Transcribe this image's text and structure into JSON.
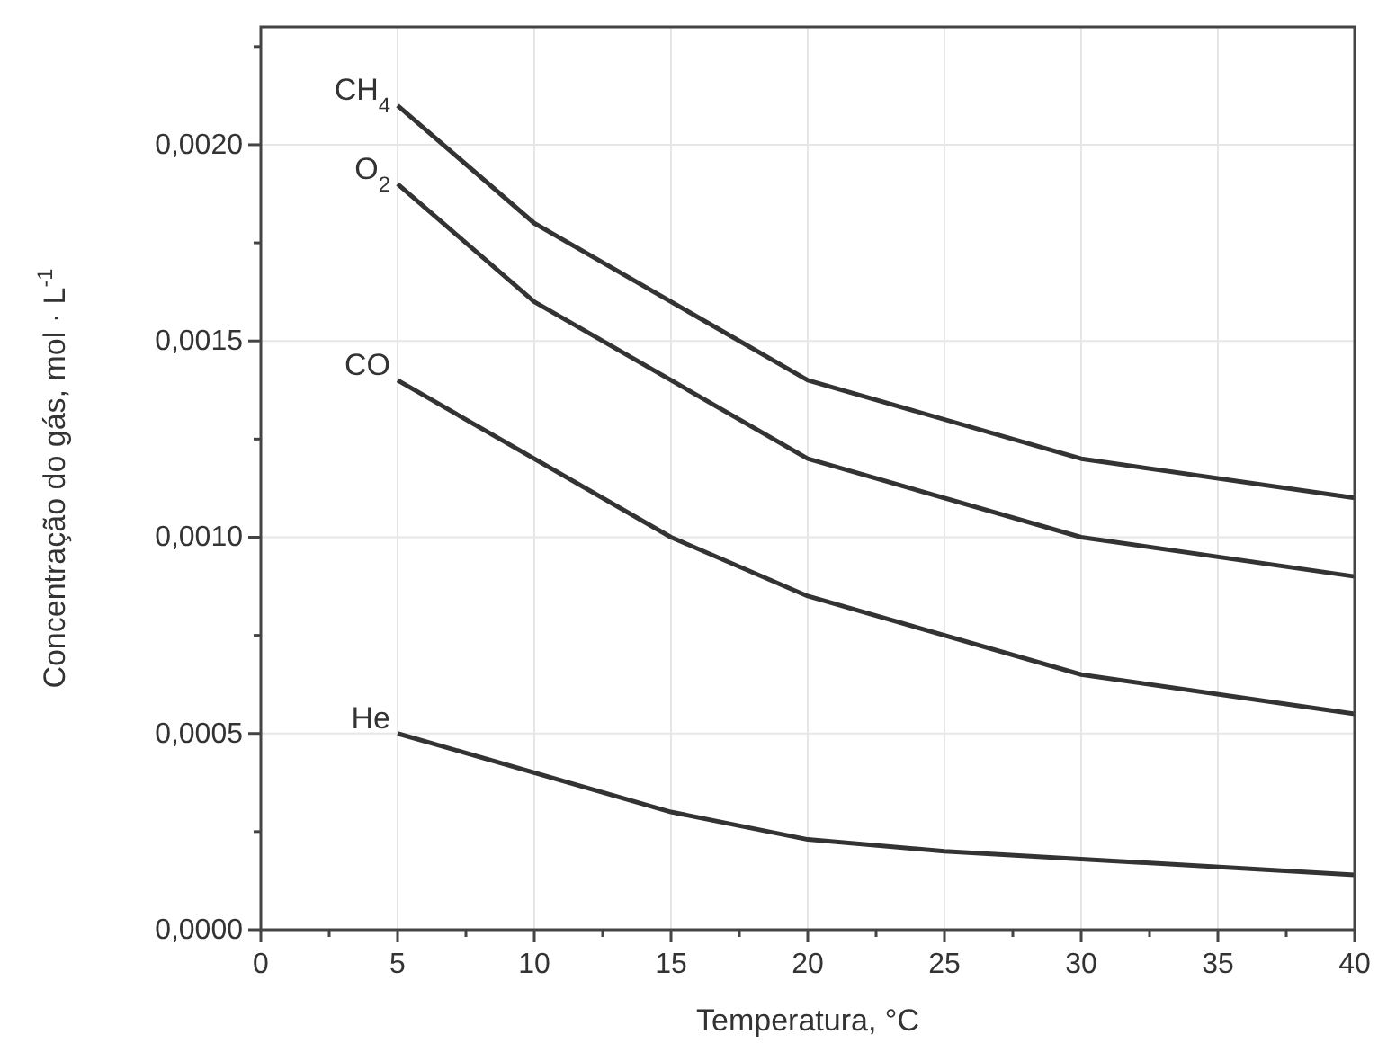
{
  "chart_data": {
    "type": "line",
    "xlabel": "Temperatura, °C",
    "ylabel": "Concentração do gás, mol · L$^{-1}$",
    "xlim": [
      0,
      40
    ],
    "ylim": [
      0,
      0.0023
    ],
    "xticks": [
      0,
      {
        "value": 2.5,
        "label": null
      },
      5,
      {
        "value": 7.5,
        "label": null
      },
      10,
      {
        "value": 12.5,
        "label": null
      },
      15,
      {
        "value": 17.5,
        "label": null
      },
      20,
      {
        "value": 22.5,
        "label": null
      },
      25,
      {
        "value": 27.5,
        "label": null
      },
      30,
      {
        "value": 32.5,
        "label": null
      },
      35,
      {
        "value": 37.5,
        "label": null
      },
      40
    ],
    "yticks": [
      {
        "value": 0,
        "label": "0,0000"
      },
      {
        "value": 0.00025,
        "label": null
      },
      {
        "value": 0.0005,
        "label": "0,0005"
      },
      {
        "value": 0.00075,
        "label": null
      },
      {
        "value": 0.001,
        "label": "0,0010"
      },
      {
        "value": 0.00125,
        "label": null
      },
      {
        "value": 0.0015,
        "label": "0,0015"
      },
      {
        "value": 0.00175,
        "label": null
      },
      {
        "value": 0.002,
        "label": "0,0020"
      },
      {
        "value": 0.00225,
        "label": null
      }
    ],
    "grid": true,
    "legend": false,
    "marker": "none",
    "line_style": "solid",
    "series": [
      {
        "name": "CH$_{4}$",
        "color": "#333333",
        "x": [
          5,
          10,
          20,
          30,
          40
        ],
        "values": [
          0.0021,
          0.0018,
          0.0014,
          0.0012,
          0.0011
        ]
      },
      {
        "name": "O$_{2}$",
        "color": "#333333",
        "x": [
          5,
          10,
          20,
          30,
          40
        ],
        "values": [
          0.0019,
          0.0016,
          0.0012,
          0.001,
          0.0009
        ]
      },
      {
        "name": "CO",
        "color": "#333333",
        "x": [
          5,
          15,
          20,
          30,
          40
        ],
        "values": [
          0.0014,
          0.001,
          0.00085,
          0.00065,
          0.00055
        ]
      },
      {
        "name": "He",
        "color": "#333333",
        "x": [
          5,
          15,
          20,
          25,
          30,
          40
        ],
        "values": [
          0.0005,
          0.0003,
          0.00023,
          0.0002,
          0.00018,
          0.00014
        ]
      }
    ]
  }
}
